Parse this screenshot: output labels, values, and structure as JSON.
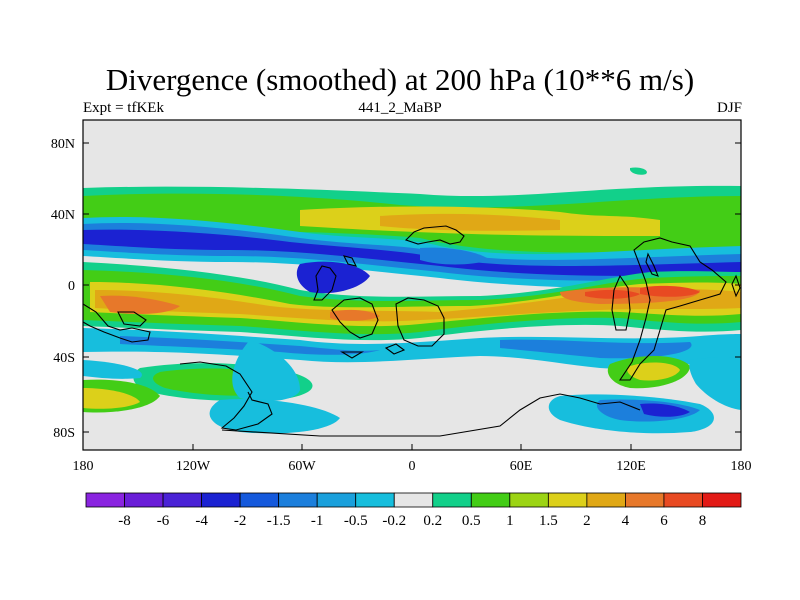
{
  "header": {
    "title": "Divergence (smoothed) at 200 hPa (10**6 m/s)",
    "left_label": "Expt = tfKEk",
    "center_label": "441_2_MaBP",
    "right_label": "DJF"
  },
  "map": {
    "lat_ticks": [
      "80N",
      "40N",
      "0",
      "40S",
      "80S"
    ],
    "lon_ticks": [
      "180",
      "120W",
      "60W",
      "0",
      "60E",
      "120E",
      "180"
    ]
  },
  "colorbar": {
    "labels": [
      "-8",
      "-6",
      "-4",
      "-2",
      "-1.5",
      "-1",
      "-0.5",
      "-0.2",
      "0.2",
      "0.5",
      "1",
      "1.5",
      "2",
      "4",
      "6",
      "8"
    ],
    "colors": [
      "#8a24e0",
      "#6a1ed8",
      "#4a22d6",
      "#1b22d2",
      "#1559dc",
      "#1c7fdc",
      "#1aa0dc",
      "#17bedd",
      "#e6e6e6",
      "#12d08a",
      "#43cd16",
      "#9cd414",
      "#dcd01a",
      "#e0a816",
      "#e7782a",
      "#e84a22",
      "#e21a16"
    ]
  }
}
